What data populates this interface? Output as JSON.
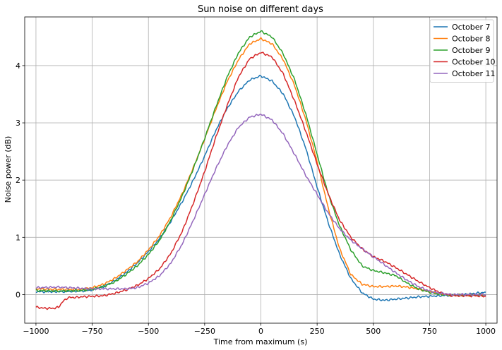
{
  "chart_data": {
    "type": "line",
    "title": "Sun noise on different days",
    "xlabel": "Time from maximum (s)",
    "ylabel": "Noise power (dB)",
    "xlim": [
      -1050,
      1050
    ],
    "ylim": [
      -0.5,
      4.85
    ],
    "xticks": [
      -1000,
      -750,
      -500,
      -250,
      0,
      250,
      500,
      750,
      1000
    ],
    "xtick_labels": [
      "−1000",
      "−750",
      "−500",
      "−250",
      "0",
      "250",
      "500",
      "750",
      "1000"
    ],
    "yticks": [
      0,
      1,
      2,
      3,
      4
    ],
    "ytick_labels": [
      "0",
      "1",
      "2",
      "3",
      "4"
    ],
    "grid": true,
    "legend_position": "top-right",
    "series": [
      {
        "name": "October 7",
        "color": "#1f77b4",
        "x": [
          -1000,
          -900,
          -800,
          -750,
          -700,
          -650,
          -600,
          -550,
          -500,
          -450,
          -400,
          -350,
          -300,
          -250,
          -200,
          -150,
          -100,
          -50,
          0,
          50,
          100,
          150,
          200,
          250,
          300,
          350,
          400,
          450,
          500,
          550,
          600,
          650,
          700,
          750,
          800,
          850,
          900,
          950,
          1000
        ],
        "y": [
          0.05,
          0.05,
          0.06,
          0.08,
          0.14,
          0.24,
          0.38,
          0.55,
          0.75,
          0.98,
          1.28,
          1.62,
          2.0,
          2.42,
          2.87,
          3.25,
          3.55,
          3.75,
          3.82,
          3.73,
          3.5,
          3.1,
          2.55,
          1.88,
          1.25,
          0.7,
          0.28,
          0.03,
          -0.08,
          -0.1,
          -0.08,
          -0.06,
          -0.04,
          -0.03,
          -0.02,
          -0.01,
          0.0,
          0.02,
          0.04
        ]
      },
      {
        "name": "October 8",
        "color": "#ff7f0e",
        "x": [
          -1000,
          -900,
          -800,
          -750,
          -700,
          -650,
          -600,
          -550,
          -500,
          -450,
          -400,
          -350,
          -300,
          -250,
          -200,
          -150,
          -100,
          -50,
          0,
          50,
          100,
          150,
          200,
          250,
          300,
          350,
          400,
          450,
          500,
          550,
          600,
          650,
          700,
          750,
          800,
          850,
          900,
          950,
          1000
        ],
        "y": [
          0.1,
          0.09,
          0.09,
          0.12,
          0.18,
          0.28,
          0.42,
          0.57,
          0.78,
          1.03,
          1.36,
          1.76,
          2.22,
          2.72,
          3.24,
          3.72,
          4.1,
          4.38,
          4.47,
          4.38,
          4.1,
          3.65,
          3.05,
          2.32,
          1.5,
          0.8,
          0.35,
          0.18,
          0.14,
          0.14,
          0.15,
          0.13,
          0.1,
          0.05,
          0.01,
          -0.01,
          -0.01,
          -0.01,
          -0.01
        ]
      },
      {
        "name": "October 9",
        "color": "#2ca02c",
        "x": [
          -1000,
          -900,
          -800,
          -750,
          -700,
          -650,
          -600,
          -550,
          -500,
          -450,
          -400,
          -350,
          -300,
          -250,
          -200,
          -150,
          -100,
          -50,
          0,
          50,
          100,
          150,
          200,
          250,
          300,
          350,
          400,
          450,
          500,
          550,
          600,
          650,
          700,
          750,
          800,
          850,
          900,
          950,
          1000
        ],
        "y": [
          0.07,
          0.06,
          0.07,
          0.09,
          0.14,
          0.22,
          0.35,
          0.5,
          0.7,
          0.95,
          1.3,
          1.72,
          2.2,
          2.73,
          3.28,
          3.8,
          4.22,
          4.5,
          4.6,
          4.5,
          4.2,
          3.75,
          3.15,
          2.45,
          1.75,
          1.2,
          0.78,
          0.5,
          0.42,
          0.38,
          0.33,
          0.2,
          0.1,
          0.04,
          0.0,
          -0.01,
          -0.01,
          -0.01,
          -0.01
        ]
      },
      {
        "name": "October 10",
        "color": "#d62728",
        "x": [
          -1000,
          -960,
          -920,
          -900,
          -880,
          -860,
          -850,
          -820,
          -800,
          -750,
          -700,
          -650,
          -600,
          -550,
          -500,
          -450,
          -400,
          -350,
          -300,
          -250,
          -200,
          -150,
          -100,
          -50,
          0,
          50,
          100,
          150,
          200,
          250,
          300,
          350,
          400,
          450,
          500,
          550,
          600,
          650,
          700,
          750,
          800,
          850,
          900,
          950,
          1000
        ],
        "y": [
          -0.22,
          -0.24,
          -0.24,
          -0.22,
          -0.12,
          -0.06,
          -0.05,
          -0.05,
          -0.04,
          -0.03,
          -0.02,
          0.02,
          0.08,
          0.16,
          0.28,
          0.45,
          0.72,
          1.1,
          1.6,
          2.15,
          2.75,
          3.3,
          3.8,
          4.12,
          4.23,
          4.15,
          3.85,
          3.38,
          2.85,
          2.28,
          1.75,
          1.3,
          1.0,
          0.8,
          0.66,
          0.58,
          0.47,
          0.35,
          0.23,
          0.12,
          0.03,
          -0.02,
          -0.02,
          -0.02,
          -0.03
        ]
      },
      {
        "name": "October 11",
        "color": "#9467bd",
        "x": [
          -1000,
          -900,
          -800,
          -750,
          -700,
          -650,
          -600,
          -550,
          -500,
          -450,
          -400,
          -350,
          -300,
          -250,
          -200,
          -150,
          -100,
          -50,
          0,
          50,
          100,
          150,
          200,
          250,
          300,
          350,
          400,
          450,
          500,
          550,
          600,
          650,
          700,
          750,
          800,
          850,
          900,
          950,
          1000
        ],
        "y": [
          0.12,
          0.13,
          0.11,
          0.1,
          0.1,
          0.1,
          0.1,
          0.12,
          0.2,
          0.33,
          0.55,
          0.88,
          1.3,
          1.75,
          2.2,
          2.6,
          2.92,
          3.1,
          3.15,
          3.05,
          2.8,
          2.45,
          2.08,
          1.75,
          1.42,
          1.15,
          0.95,
          0.8,
          0.66,
          0.52,
          0.38,
          0.25,
          0.14,
          0.06,
          0.02,
          0.0,
          0.0,
          0.0,
          0.0
        ]
      }
    ]
  }
}
